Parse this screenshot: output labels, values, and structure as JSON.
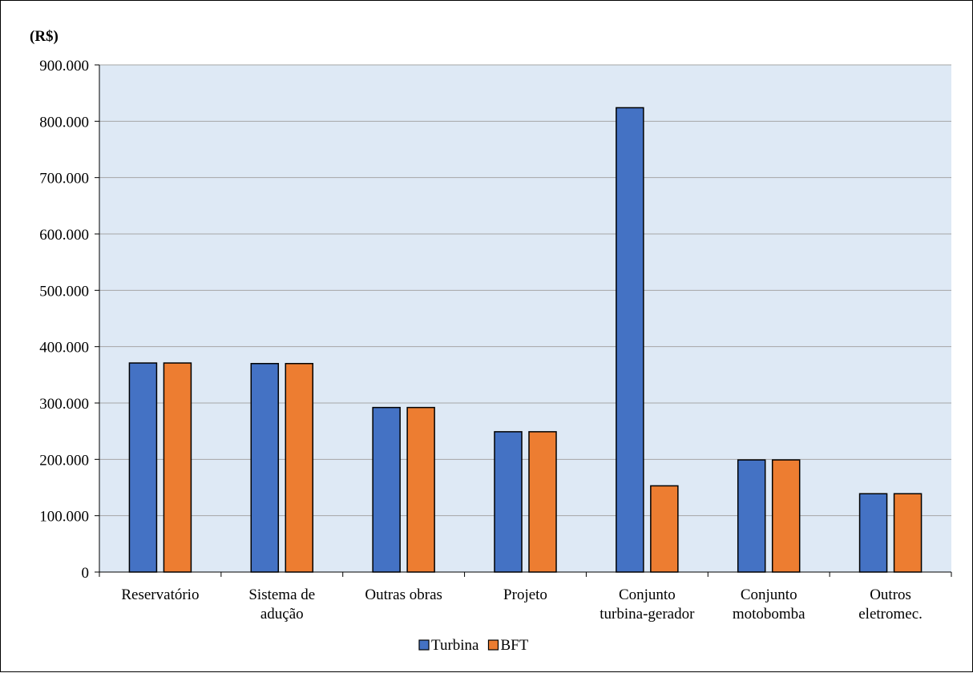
{
  "chart_data": {
    "type": "bar",
    "title": "",
    "unit_label": "(R$)",
    "xlabel": "",
    "ylabel": "",
    "ylim": [
      0,
      900000
    ],
    "yticks": [
      0,
      100000,
      200000,
      300000,
      400000,
      500000,
      600000,
      700000,
      800000,
      900000
    ],
    "ytick_labels": [
      "0",
      "100.000",
      "200.000",
      "300.000",
      "400.000",
      "500.000",
      "600.000",
      "700.000",
      "800.000",
      "900.000"
    ],
    "grid": true,
    "legend_position": "bottom",
    "categories": [
      [
        "Reservatório"
      ],
      [
        "Sistema de",
        "adução"
      ],
      [
        "Outras obras"
      ],
      [
        "Projeto"
      ],
      [
        "Conjunto",
        "turbina-gerador"
      ],
      [
        "Conjunto",
        "motobomba"
      ],
      [
        "Outros",
        "eletromec."
      ]
    ],
    "series": [
      {
        "name": "Turbina",
        "color": "#4472C4",
        "values": [
          371000,
          370000,
          292000,
          249000,
          824000,
          199000,
          139000
        ]
      },
      {
        "name": "BFT",
        "color": "#ED7D31",
        "values": [
          371000,
          370000,
          292000,
          249000,
          153000,
          199000,
          139000
        ]
      }
    ],
    "plot_background": "#DEE9F5",
    "gridline_color": "#A6A6A6"
  }
}
